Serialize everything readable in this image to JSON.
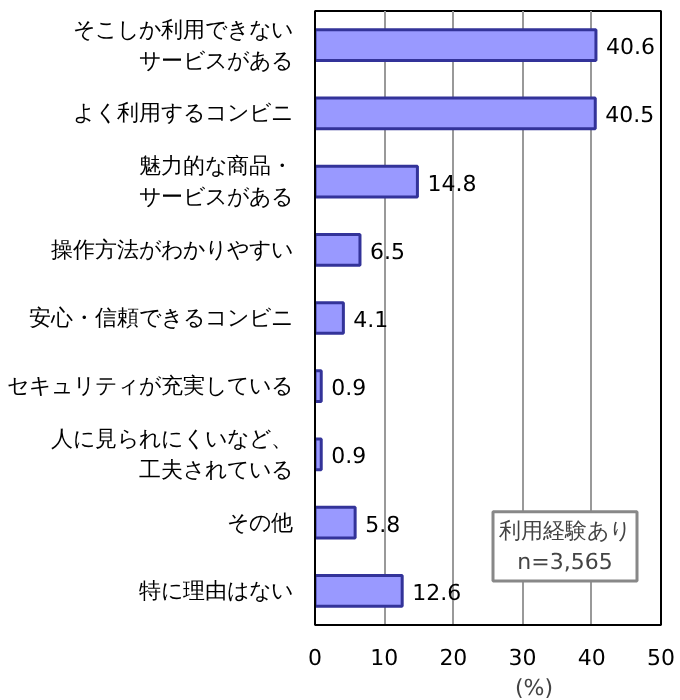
{
  "chart_data": {
    "type": "bar",
    "orientation": "horizontal",
    "xlabel": "(%)",
    "categories": [
      "そこしか利用できないサービスがある",
      "よく利用するコンビニ",
      "魅力的な商品・サービスがある",
      "操作方法がわかりやすい",
      "安心・信頼できるコンビニ",
      "セキュリティが充実している",
      "人に見られにくいなど、工夫されている",
      "その他",
      "特に理由はない"
    ],
    "values": [
      40.6,
      40.5,
      14.8,
      6.5,
      4.1,
      0.9,
      0.9,
      5.8,
      12.6
    ],
    "color": "#9999ff",
    "xlim": [
      0,
      50
    ],
    "xticks": [
      0,
      10,
      20,
      30,
      40,
      50
    ],
    "grid": "x",
    "data_labels": true,
    "annotations": [
      "利用経験あり\nn=3,565"
    ]
  }
}
